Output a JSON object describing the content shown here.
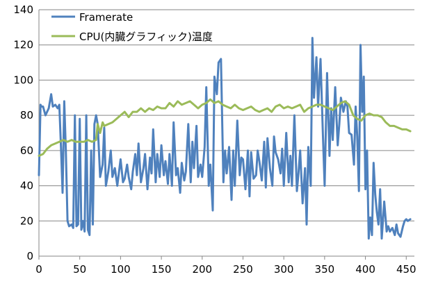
{
  "chart_data": {
    "type": "line",
    "title": "",
    "xlabel": "",
    "ylabel": "",
    "xlim": [
      0,
      460
    ],
    "ylim": [
      0,
      140
    ],
    "x_ticks": [
      0,
      50,
      100,
      150,
      200,
      250,
      300,
      350,
      400,
      450
    ],
    "y_ticks": [
      0,
      20,
      40,
      60,
      80,
      100,
      120,
      140
    ],
    "grid": "horizontal",
    "legend_position": "top-left",
    "series": [
      {
        "name": "Framerate",
        "color": "#4f81bd",
        "x": [
          0,
          2,
          3,
          5,
          8,
          10,
          12,
          15,
          17,
          20,
          23,
          25,
          27,
          29,
          31,
          33,
          35,
          37,
          40,
          42,
          44,
          46,
          48,
          50,
          52,
          54,
          56,
          58,
          60,
          62,
          64,
          66,
          68,
          70,
          72,
          75,
          78,
          80,
          82,
          85,
          88,
          90,
          93,
          96,
          100,
          103,
          105,
          108,
          110,
          113,
          115,
          118,
          120,
          122,
          125,
          128,
          130,
          133,
          136,
          138,
          140,
          143,
          145,
          148,
          150,
          153,
          155,
          158,
          160,
          163,
          165,
          168,
          170,
          173,
          175,
          178,
          180,
          183,
          186,
          188,
          190,
          193,
          195,
          198,
          200,
          203,
          205,
          208,
          210,
          213,
          215,
          218,
          220,
          223,
          226,
          228,
          230,
          233,
          236,
          238,
          240,
          243,
          246,
          248,
          250,
          253,
          256,
          258,
          260,
          263,
          266,
          268,
          270,
          273,
          276,
          278,
          280,
          283,
          286,
          288,
          290,
          293,
          296,
          298,
          300,
          303,
          306,
          308,
          310,
          313,
          316,
          318,
          320,
          323,
          326,
          328,
          330,
          333,
          335,
          337,
          340,
          342,
          345,
          348,
          350,
          353,
          356,
          358,
          360,
          363,
          366,
          368,
          370,
          373,
          376,
          378,
          380,
          383,
          386,
          388,
          390,
          392,
          394,
          396,
          398,
          400,
          402,
          404,
          406,
          408,
          410,
          412,
          414,
          416,
          418,
          420,
          423,
          426,
          428,
          430,
          433,
          436,
          438,
          440,
          443,
          446,
          448,
          450,
          452,
          455
        ],
        "values": [
          46,
          86,
          85,
          85,
          80,
          82,
          84,
          92,
          85,
          86,
          84,
          86,
          62,
          36,
          88,
          60,
          20,
          17,
          18,
          16,
          80,
          17,
          18,
          78,
          15,
          20,
          14,
          80,
          15,
          12,
          60,
          18,
          75,
          80,
          75,
          45,
          52,
          73,
          40,
          48,
          60,
          45,
          50,
          40,
          55,
          42,
          44,
          52,
          45,
          38,
          48,
          58,
          46,
          64,
          42,
          50,
          58,
          38,
          56,
          47,
          72,
          42,
          58,
          45,
          63,
          46,
          54,
          41,
          58,
          40,
          76,
          46,
          50,
          36,
          53,
          43,
          48,
          75,
          42,
          65,
          50,
          74,
          45,
          52,
          45,
          62,
          96,
          40,
          52,
          26,
          102,
          92,
          110,
          112,
          42,
          60,
          47,
          62,
          32,
          60,
          40,
          77,
          46,
          56,
          55,
          38,
          60,
          34,
          59,
          44,
          46,
          60,
          54,
          43,
          65,
          39,
          67,
          50,
          40,
          68,
          59,
          55,
          47,
          61,
          40,
          70,
          42,
          57,
          40,
          80,
          37,
          47,
          60,
          30,
          50,
          18,
          62,
          40,
          124,
          90,
          113,
          85,
          112,
          68,
          40,
          104,
          57,
          84,
          66,
          96,
          63,
          75,
          90,
          82,
          88,
          85,
          70,
          69,
          52,
          85,
          68,
          37,
          120,
          82,
          102,
          38,
          60,
          10,
          22,
          12,
          53,
          35,
          25,
          18,
          38,
          10,
          31,
          14,
          17,
          14,
          16,
          12,
          18,
          13,
          11,
          17,
          20,
          21,
          20,
          21
        ],
        "approximate": true
      },
      {
        "name": "CPU(内臓グラフィック)温度",
        "color": "#9bbb59",
        "x": [
          0,
          5,
          10,
          15,
          20,
          25,
          30,
          35,
          40,
          45,
          50,
          55,
          60,
          65,
          70,
          72,
          75,
          78,
          80,
          85,
          90,
          95,
          100,
          105,
          110,
          115,
          120,
          125,
          130,
          135,
          140,
          145,
          150,
          155,
          160,
          165,
          170,
          175,
          180,
          185,
          190,
          195,
          200,
          205,
          210,
          215,
          220,
          225,
          230,
          235,
          240,
          245,
          250,
          255,
          260,
          265,
          270,
          275,
          280,
          285,
          290,
          295,
          300,
          305,
          310,
          315,
          320,
          325,
          330,
          335,
          340,
          345,
          350,
          355,
          360,
          365,
          370,
          375,
          380,
          385,
          390,
          395,
          400,
          405,
          410,
          415,
          420,
          425,
          430,
          435,
          440,
          445,
          450,
          455
        ],
        "values": [
          57,
          58,
          61,
          63,
          64,
          65,
          66,
          65,
          66,
          65,
          65,
          65,
          66,
          65,
          66,
          75,
          70,
          76,
          74,
          75,
          76,
          78,
          80,
          82,
          79,
          82,
          82,
          84,
          82,
          84,
          83,
          85,
          84,
          84,
          87,
          85,
          88,
          86,
          87,
          88,
          86,
          84,
          86,
          87,
          89,
          87,
          88,
          86,
          85,
          84,
          86,
          84,
          83,
          84,
          85,
          83,
          82,
          83,
          84,
          82,
          85,
          86,
          84,
          85,
          84,
          85,
          86,
          82,
          84,
          85,
          86,
          86,
          85,
          84,
          83,
          85,
          87,
          88,
          86,
          80,
          78,
          77,
          80,
          81,
          80,
          80,
          79,
          76,
          74,
          74,
          73,
          72,
          72,
          71
        ],
        "approximate": true
      }
    ]
  }
}
